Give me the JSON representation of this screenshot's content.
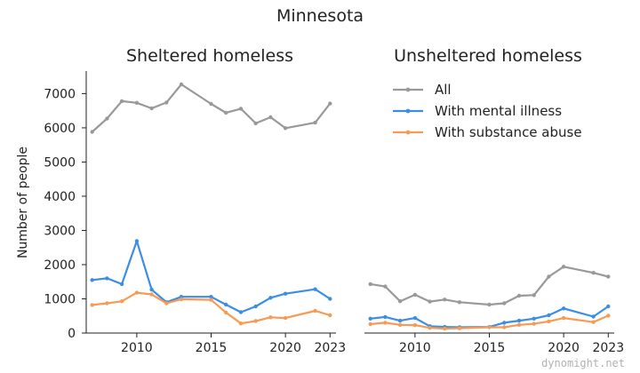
{
  "title": "Minnesota",
  "watermark": "dynomight.net",
  "colors": {
    "all": "#999999",
    "mental_illness": "#3b8ee6",
    "substance_abuse": "#f79a55",
    "axis": "#222222"
  },
  "chart_data": [
    {
      "type": "line",
      "title": "Sheltered homeless",
      "xlabel": "",
      "ylabel": "Number of people",
      "xlim": [
        2006.6,
        2023.4
      ],
      "ylim": [
        0,
        7400
      ],
      "xticks": [
        2010,
        2015,
        2020,
        2023
      ],
      "yticks": [
        0,
        1000,
        2000,
        3000,
        4000,
        5000,
        6000,
        7000
      ],
      "x": [
        2007,
        2008,
        2009,
        2010,
        2011,
        2012,
        2013,
        2014,
        2015,
        2016,
        2017,
        2018,
        2019,
        2020,
        2022,
        2023
      ],
      "series": [
        {
          "name": "All",
          "color_key": "all",
          "values": [
            5880,
            6270,
            6780,
            6730,
            6570,
            6740,
            7270,
            null,
            6700,
            6440,
            6560,
            6130,
            6310,
            5990,
            6150,
            6710
          ]
        },
        {
          "name": "With mental illness",
          "color_key": "mental_illness",
          "values": [
            1550,
            1600,
            1430,
            2690,
            1270,
            900,
            1060,
            null,
            1060,
            830,
            610,
            780,
            1030,
            1150,
            1280,
            1000
          ]
        },
        {
          "name": "With substance abuse",
          "color_key": "substance_abuse",
          "values": [
            820,
            870,
            930,
            1180,
            1130,
            870,
            990,
            null,
            970,
            600,
            280,
            350,
            460,
            440,
            650,
            520
          ]
        }
      ]
    },
    {
      "type": "line",
      "title": "Unsheltered homeless",
      "xlabel": "",
      "ylabel": "",
      "xlim": [
        2006.6,
        2023.4
      ],
      "ylim": [
        0,
        7400
      ],
      "xticks": [
        2010,
        2015,
        2020,
        2023
      ],
      "yticks": [],
      "x": [
        2007,
        2008,
        2009,
        2010,
        2011,
        2012,
        2013,
        2015,
        2016,
        2017,
        2018,
        2019,
        2020,
        2022,
        2023
      ],
      "series": [
        {
          "name": "All",
          "color_key": "all",
          "values": [
            1430,
            1360,
            930,
            1120,
            920,
            980,
            900,
            830,
            870,
            1090,
            1110,
            1650,
            1940,
            1760,
            1650
          ]
        },
        {
          "name": "With mental illness",
          "color_key": "mental_illness",
          "values": [
            420,
            470,
            360,
            440,
            200,
            180,
            170,
            180,
            300,
            360,
            420,
            520,
            720,
            480,
            780
          ]
        },
        {
          "name": "With substance abuse",
          "color_key": "substance_abuse",
          "values": [
            260,
            300,
            240,
            230,
            150,
            130,
            140,
            170,
            170,
            240,
            270,
            340,
            440,
            320,
            510
          ]
        }
      ],
      "legend": {
        "placement": "top-right",
        "entries": [
          "All",
          "With mental illness",
          "With substance abuse"
        ]
      }
    }
  ]
}
